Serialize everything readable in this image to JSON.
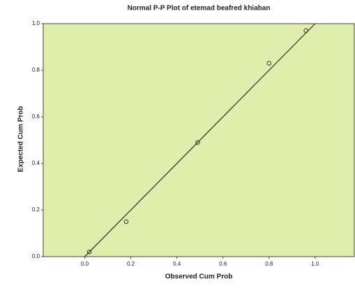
{
  "chart_data": {
    "type": "scatter",
    "title": "Normal P-P Plot of etemad beafred khiaban",
    "x_label": "Observed Cum Prob",
    "y_label": "Expected Cum Prob",
    "series": [
      {
        "color": "#333333",
        "x": [
          0.02,
          0.18,
          0.49,
          0.8,
          0.96
        ],
        "values": [
          0.02,
          0.15,
          0.49,
          0.83,
          0.97
        ]
      }
    ],
    "reference_line": {
      "x": [
        0,
        1
      ],
      "y": [
        0,
        1
      ]
    },
    "xlim": [
      -0.18,
      1.17
    ],
    "ylim": [
      0,
      1
    ],
    "xticks": [
      {
        "value": 0,
        "label": "0.0"
      },
      {
        "value": 0.2,
        "label": "0.2"
      },
      {
        "value": 0.4,
        "label": "0.4"
      },
      {
        "value": 0.6,
        "label": "0.6"
      },
      {
        "value": 0.8,
        "label": "0.8"
      },
      {
        "value": 1,
        "label": "1.0"
      }
    ],
    "yticks": [
      {
        "value": 0,
        "label": "0.0"
      },
      {
        "value": 0.2,
        "label": "0.2"
      },
      {
        "value": 0.4,
        "label": "0.4"
      },
      {
        "value": 0.6,
        "label": "0.6"
      },
      {
        "value": 0.8,
        "label": "0.8"
      },
      {
        "value": 1,
        "label": "1.0"
      }
    ],
    "background": "#dfeeaa"
  }
}
